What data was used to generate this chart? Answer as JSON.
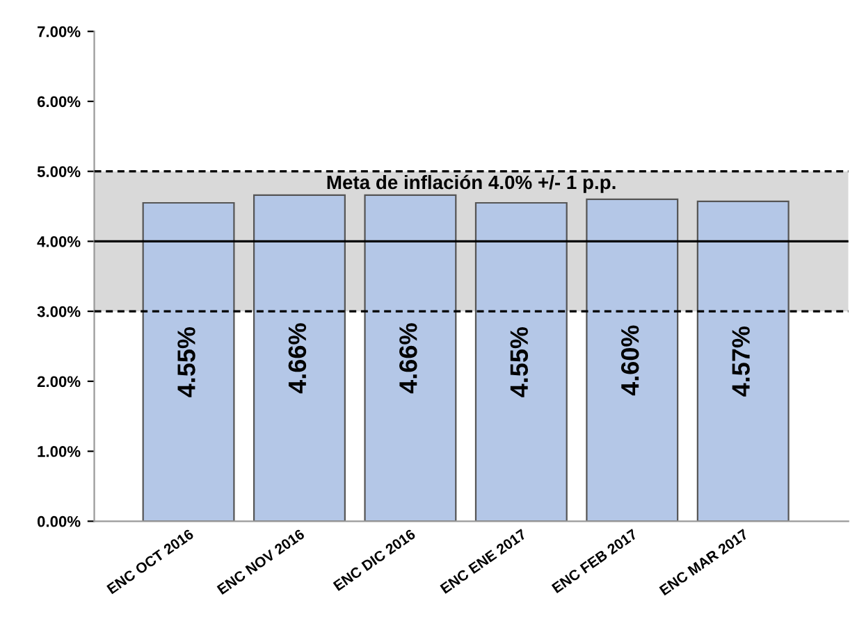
{
  "chart_data": {
    "type": "bar",
    "categories": [
      "ENC OCT 2016",
      "ENC NOV 2016",
      "ENC DIC 2016",
      "ENC ENE 2017",
      "ENC FEB 2017",
      "ENC MAR 2017"
    ],
    "values": [
      4.55,
      4.66,
      4.66,
      4.55,
      4.6,
      4.57
    ],
    "value_labels": [
      "4.55%",
      "4.66%",
      "4.66%",
      "4.55%",
      "4.60%",
      "4.57%"
    ],
    "color": "#b4c7e7",
    "ylim": [
      0,
      7
    ],
    "yticks": [
      {
        "value": 0,
        "label": "0.00%"
      },
      {
        "value": 1,
        "label": "1.00%"
      },
      {
        "value": 2,
        "label": "2.00%"
      },
      {
        "value": 3,
        "label": "3.00%"
      },
      {
        "value": 4,
        "label": "4.00%"
      },
      {
        "value": 5,
        "label": "5.00%"
      },
      {
        "value": 6,
        "label": "6.00%"
      },
      {
        "value": 7,
        "label": "7.00%"
      }
    ],
    "bands": [
      {
        "axis": "y",
        "from": 3,
        "to": 5,
        "label": "Meta de inflación 4.0% +/- 1 p.p.",
        "color": "#d9d9d9"
      }
    ],
    "ref_lines": [
      {
        "axis": "y",
        "value": 3,
        "line_style": "dashed",
        "color": "#000000"
      },
      {
        "axis": "y",
        "value": 5,
        "line_style": "dashed",
        "color": "#000000"
      },
      {
        "axis": "y",
        "value": 4,
        "line_style": "solid",
        "color": "#000000"
      }
    ],
    "grid": false,
    "legend": false
  }
}
